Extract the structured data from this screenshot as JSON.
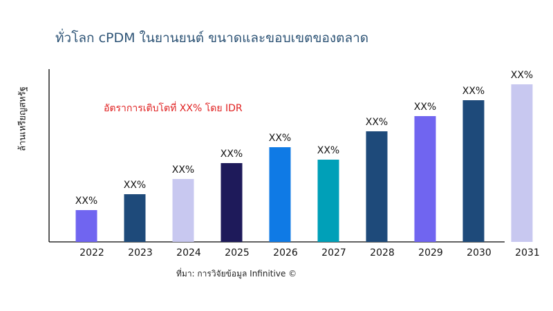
{
  "chart_data": {
    "type": "bar",
    "title": "ทั่วโลก cPDM ในยานยนต์ ขนาดและขอบเขตของตลาด",
    "xlabel": "",
    "ylabel": "ล้านเหรียญสหรัฐ",
    "annotation": "อัตราการเติบโตที่ XX% โดย IDR",
    "source": "ที่มา: การวิจัยข้อมูล Infinitive ©",
    "categories": [
      "2022",
      "2023",
      "2024",
      "2025",
      "2026",
      "2027",
      "2028",
      "2029",
      "2030",
      "2031"
    ],
    "values": [
      46,
      69,
      91,
      114,
      137,
      119,
      160,
      182,
      205,
      228
    ],
    "data_labels": [
      "XX%",
      "XX%",
      "XX%",
      "XX%",
      "XX%",
      "XX%",
      "XX%",
      "XX%",
      "XX%",
      "XX%"
    ],
    "colors": [
      "#7065f0",
      "#1e4a7a",
      "#c8c8f0",
      "#1e1a5a",
      "#0f7ae5",
      "#00a0b8",
      "#1e4a7a",
      "#7065f0",
      "#1e4a7a",
      "#c8c8f0"
    ],
    "ylim": [
      0,
      250
    ],
    "grid": false,
    "y_ticks_shown": false
  }
}
